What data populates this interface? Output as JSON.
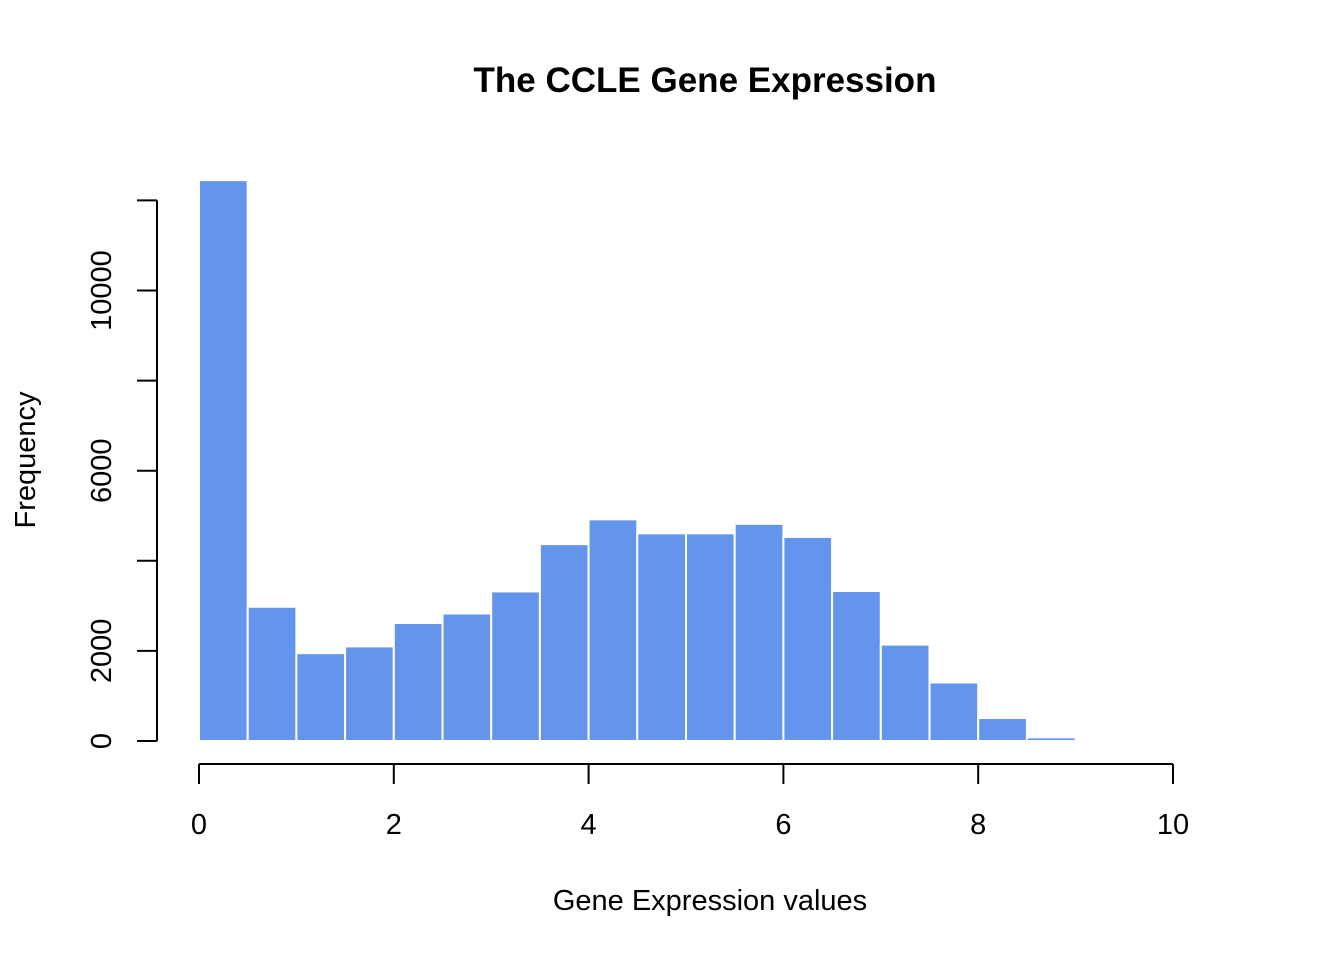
{
  "chart_data": {
    "type": "bar",
    "title": "The CCLE Gene Expression",
    "xlabel": "Gene Expression values",
    "ylabel": "Frequency",
    "xlim": [
      0,
      10
    ],
    "ylim": [
      0,
      12000
    ],
    "x_ticks": [
      "0",
      "2",
      "4",
      "6",
      "8",
      "10"
    ],
    "y_ticks": [
      "0",
      "2000",
      "6000",
      "10000"
    ],
    "y_tick_marks": [
      0,
      2000,
      4000,
      6000,
      8000,
      10000,
      12000
    ],
    "bar_color": "#6495ED",
    "grid": false,
    "bins": [
      {
        "from": 0.0,
        "to": 0.5,
        "value": 12450
      },
      {
        "from": 0.5,
        "to": 1.0,
        "value": 2980
      },
      {
        "from": 1.0,
        "to": 1.5,
        "value": 1950
      },
      {
        "from": 1.5,
        "to": 2.0,
        "value": 2100
      },
      {
        "from": 2.0,
        "to": 2.5,
        "value": 2620
      },
      {
        "from": 2.5,
        "to": 3.0,
        "value": 2830
      },
      {
        "from": 3.0,
        "to": 3.5,
        "value": 3320
      },
      {
        "from": 3.5,
        "to": 4.0,
        "value": 4370
      },
      {
        "from": 4.0,
        "to": 4.5,
        "value": 4920
      },
      {
        "from": 4.5,
        "to": 5.0,
        "value": 4610
      },
      {
        "from": 5.0,
        "to": 5.5,
        "value": 4610
      },
      {
        "from": 5.5,
        "to": 6.0,
        "value": 4820
      },
      {
        "from": 6.0,
        "to": 6.5,
        "value": 4530
      },
      {
        "from": 6.5,
        "to": 7.0,
        "value": 3330
      },
      {
        "from": 7.0,
        "to": 7.5,
        "value": 2140
      },
      {
        "from": 7.5,
        "to": 8.0,
        "value": 1300
      },
      {
        "from": 8.0,
        "to": 8.5,
        "value": 510
      },
      {
        "from": 8.5,
        "to": 9.0,
        "value": 80
      }
    ]
  }
}
